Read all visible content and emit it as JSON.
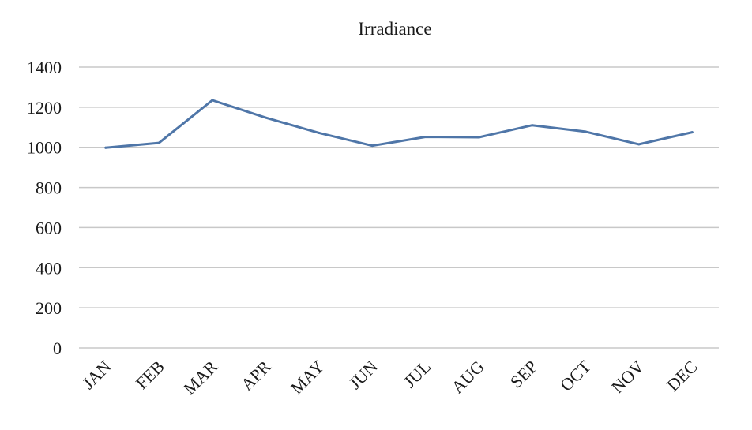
{
  "chart_data": {
    "type": "line",
    "title": "Irradiance",
    "xlabel": "",
    "ylabel": "",
    "categories": [
      "JAN",
      "FEB",
      "MAR",
      "APR",
      "MAY",
      "JUN",
      "JUL",
      "AUG",
      "SEP",
      "OCT",
      "NOV",
      "DEC"
    ],
    "series": [
      {
        "name": "",
        "color": "#4f76a8",
        "values": [
          998,
          1022,
          1235,
          1148,
          1072,
          1008,
          1052,
          1050,
          1110,
          1078,
          1015,
          1075
        ]
      }
    ],
    "ylim": [
      0,
      1400
    ],
    "yticks": [
      0,
      200,
      400,
      600,
      800,
      1000,
      1200,
      1400
    ],
    "grid": true,
    "legend": "none"
  }
}
